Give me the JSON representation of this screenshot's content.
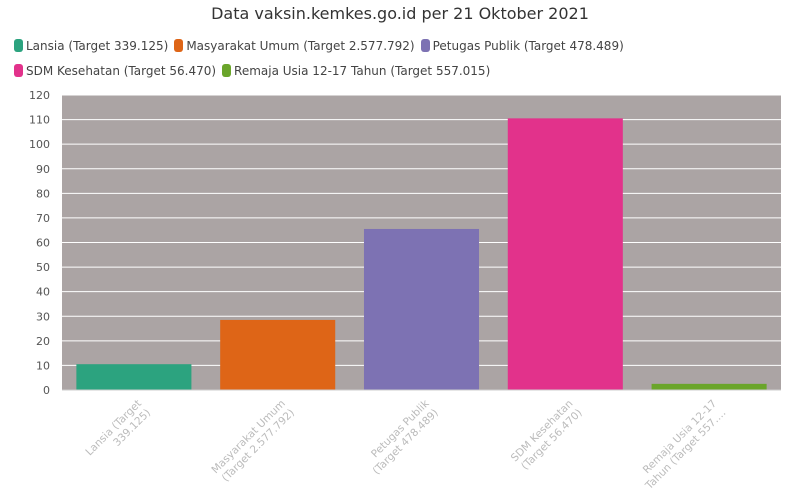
{
  "chart_data": {
    "type": "bar",
    "title": "Data vaksin.kemkes.go.id per 21 Oktober 2021",
    "categories": [
      [
        "Lansia (Target",
        "339.125)"
      ],
      [
        "Masyarakat Umum",
        "(Target 2.577.792)"
      ],
      [
        "Petugas Publik",
        "(Target 478.489)"
      ],
      [
        "SDM Kesehatan",
        "(Target 56.470)"
      ],
      [
        "Remaja Usia 12-17",
        "Tahun (Target 557.…"
      ]
    ],
    "legend": [
      "Lansia (Target 339.125)",
      "Masyarakat Umum (Target 2.577.792)",
      "Petugas Publik (Target 478.489)",
      "SDM Kesehatan (Target 56.470)",
      "Remaja Usia 12-17 Tahun (Target 557.015)"
    ],
    "values": [
      10.5,
      28.5,
      65.5,
      110.5,
      2.5
    ],
    "colors": [
      "#2ca37f",
      "#de6517",
      "#7d72b3",
      "#e2328b",
      "#6aa52a"
    ],
    "plot_background": "#aba4a4",
    "grid_color": "#ffffff",
    "ylim": [
      0,
      120
    ],
    "yticks": [
      0,
      10,
      20,
      30,
      40,
      50,
      60,
      70,
      80,
      90,
      100,
      110,
      120
    ],
    "grid": true,
    "legend_position": "top-left"
  }
}
